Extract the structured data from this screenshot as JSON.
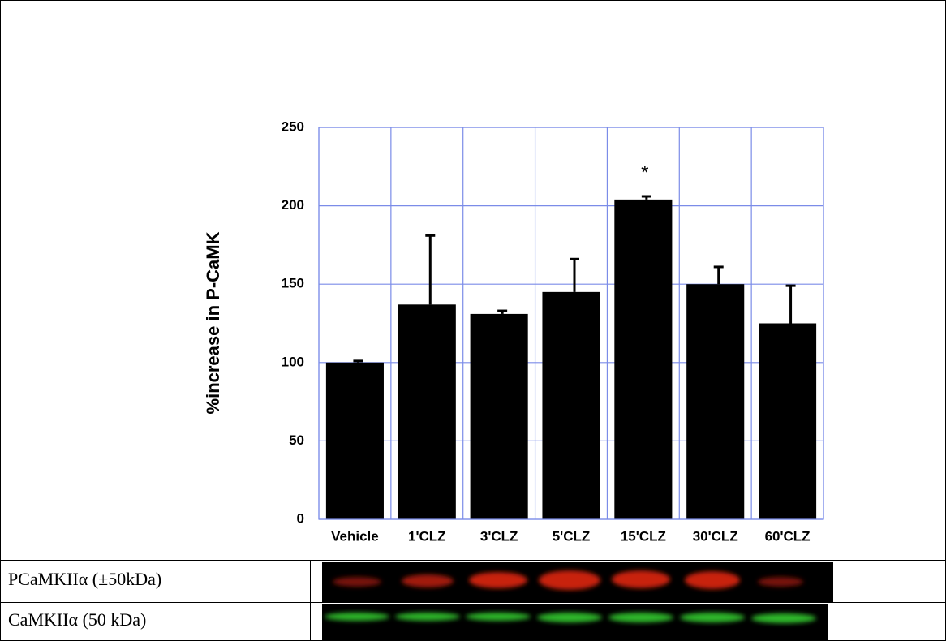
{
  "chart_data": {
    "type": "bar",
    "y_label": "%increase in P-CaMK",
    "categories": [
      "Vehicle",
      "1'CLZ",
      "3'CLZ",
      "5'CLZ",
      "15'CLZ",
      "30'CLZ",
      "60'CLZ"
    ],
    "values": [
      100,
      137,
      131,
      145,
      204,
      150,
      125
    ],
    "errors": [
      1,
      44,
      2,
      21,
      2,
      11,
      24
    ],
    "color": "#000000",
    "ylim": [
      0,
      250
    ],
    "yticks": [
      0,
      50,
      100,
      150,
      200,
      250
    ],
    "grid": true,
    "grid_color": "#7b8ce8",
    "annotations": [
      {
        "text": "*",
        "category": "15'CLZ"
      }
    ]
  },
  "table": {
    "rows": [
      [
        "PCaMKIIα  (±50kDa)"
      ],
      [
        "CaMKIIα (50 kDa)"
      ]
    ]
  }
}
